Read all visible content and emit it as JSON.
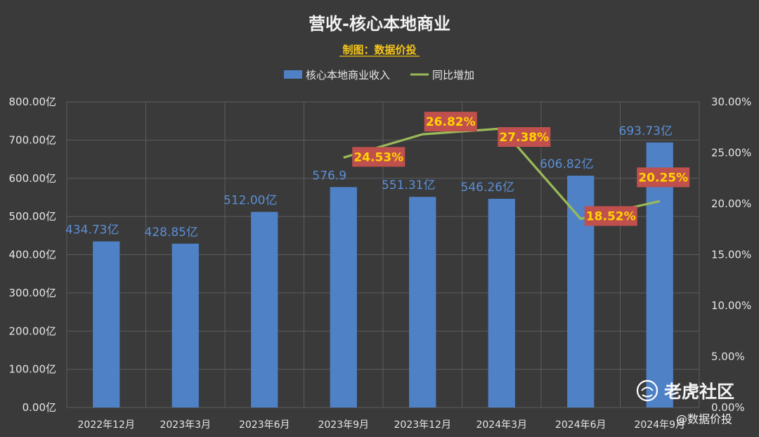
{
  "chart_data": {
    "type": "bar",
    "title": "营收-核心本地商业",
    "subtitle": "制图：数据价投",
    "categories": [
      "2022年12月",
      "2023年3月",
      "2023年6月",
      "2023年9月",
      "2023年12月",
      "2024年3月",
      "2024年6月",
      "2024年9月"
    ],
    "series": [
      {
        "name": "核心本地商业收入",
        "type": "bar",
        "axis": "left",
        "color": "#4f81c7",
        "values": [
          434.73,
          428.85,
          512.0,
          576.9,
          551.31,
          546.26,
          606.82,
          693.73
        ],
        "labels": [
          "434.73亿",
          "428.85亿",
          "512.00亿",
          "576.9",
          "551.31亿",
          "546.26亿",
          "606.82亿",
          "693.73亿"
        ]
      },
      {
        "name": "同比增加",
        "type": "line",
        "axis": "right",
        "color": "#9bbb59",
        "values": [
          null,
          null,
          null,
          24.53,
          26.82,
          27.38,
          18.52,
          20.25
        ],
        "labels": [
          null,
          null,
          null,
          "24.53%",
          "26.82%",
          "27.38%",
          "18.52%",
          "20.25%"
        ]
      }
    ],
    "y_axis_left": {
      "range": [
        0,
        800
      ],
      "ticks": [
        "0.00亿",
        "100.00亿",
        "200.00亿",
        "300.00亿",
        "400.00亿",
        "500.00亿",
        "600.00亿",
        "700.00亿",
        "800.00亿"
      ]
    },
    "y_axis_right": {
      "range": [
        0,
        30
      ],
      "ticks": [
        "0.00%",
        "5.00%",
        "10.00%",
        "15.00%",
        "20.00%",
        "25.00%",
        "30.00%"
      ]
    },
    "legend": "top-center",
    "grid": true,
    "label_box_color": "#c0504d",
    "watermark": {
      "main": "老虎社区",
      "sub": "@数据价投"
    }
  }
}
